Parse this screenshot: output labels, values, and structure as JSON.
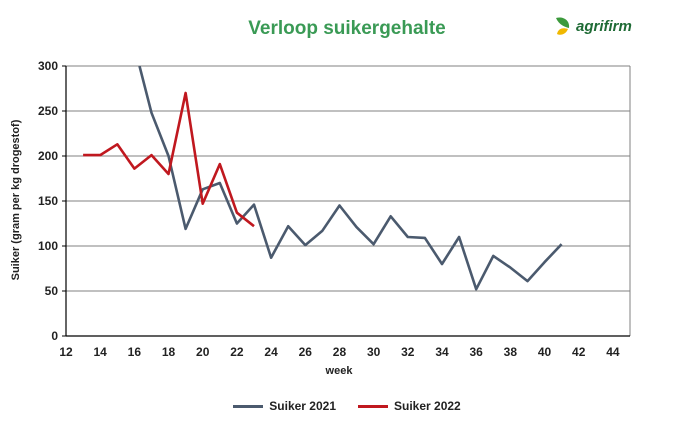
{
  "header": {
    "title": "Verloop suikergehalte",
    "logo_text": "agrifirm"
  },
  "colors": {
    "title": "#3a9a55",
    "series_2021": "#4b5a6e",
    "series_2022": "#c0181f",
    "grid": "#808080"
  },
  "chart_data": {
    "type": "line",
    "title": "Verloop suikergehalte",
    "xlabel": "week",
    "ylabel": "Suiker (gram per kg drogestof)",
    "xlim": [
      12,
      45
    ],
    "ylim": [
      0,
      300
    ],
    "xticks": [
      "12",
      "14",
      "16",
      "18",
      "20",
      "22",
      "24",
      "26",
      "28",
      "30",
      "32",
      "34",
      "36",
      "38",
      "40",
      "42",
      "44"
    ],
    "yticks": [
      "300",
      "250",
      "200",
      "150",
      "100",
      "50",
      "0"
    ],
    "grid": "horizontal",
    "legend": "bottom",
    "series": [
      {
        "name": "Suiker 2021",
        "color": "#4b5a6e",
        "x": [
          16.3,
          17,
          18,
          19,
          20,
          21,
          22,
          23,
          24,
          25,
          26,
          27,
          28,
          29,
          30,
          31,
          32,
          33,
          34,
          35,
          36,
          37,
          38,
          39,
          40,
          41
        ],
        "y": [
          300,
          248,
          200,
          119,
          163,
          170,
          125,
          146,
          87,
          122,
          101,
          117,
          145,
          121,
          102,
          133,
          110,
          109,
          80,
          110,
          52,
          89,
          76,
          61,
          82,
          102
        ]
      },
      {
        "name": "Suiker 2022",
        "color": "#c0181f",
        "x": [
          13,
          14,
          15,
          16,
          17,
          18,
          19,
          20,
          21,
          22,
          23
        ],
        "y": [
          201,
          201,
          213,
          186,
          201,
          180,
          270,
          147,
          191,
          137,
          122
        ]
      }
    ]
  }
}
